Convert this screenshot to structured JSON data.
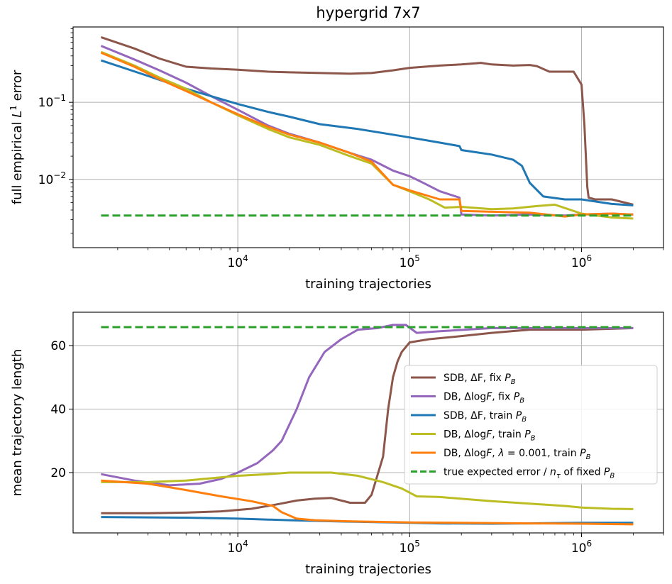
{
  "chart_data": [
    {
      "type": "line",
      "title": "hypergrid 7x7",
      "xlabel": "training trajectories",
      "ylabel": "full empirical L^1 error",
      "ylabel_parts": {
        "pre": "full empirical ",
        "var": "L",
        "sup": "1",
        "post": " error"
      },
      "x_scale": "log",
      "y_scale": "log",
      "xlim": [
        1100,
        3000000
      ],
      "ylim": [
        0.0013,
        0.95
      ],
      "grid": true,
      "xticks": [
        {
          "value": 10000,
          "base": "10",
          "exp": "4"
        },
        {
          "value": 100000,
          "base": "10",
          "exp": "5"
        },
        {
          "value": 1000000,
          "base": "10",
          "exp": "6"
        }
      ],
      "yticks": [
        {
          "value": 0.01,
          "base": "10",
          "exp": "−2"
        },
        {
          "value": 0.1,
          "base": "10",
          "exp": "−1"
        }
      ],
      "series": [
        {
          "key": "sdb_fix",
          "color": "#8c564b",
          "x": [
            1600,
            2500,
            3500,
            5000,
            7000,
            10000,
            15000,
            20000,
            30000,
            45000,
            60000,
            80000,
            100000,
            150000,
            200000,
            260000,
            300000,
            400000,
            500000,
            550000,
            650000,
            800000,
            900000,
            1000000,
            1040000,
            1080000,
            1100000,
            1200000,
            1500000,
            2000000
          ],
          "y": [
            0.7,
            0.5,
            0.37,
            0.29,
            0.275,
            0.265,
            0.25,
            0.245,
            0.24,
            0.235,
            0.24,
            0.26,
            0.28,
            0.3,
            0.31,
            0.325,
            0.31,
            0.3,
            0.305,
            0.295,
            0.25,
            0.25,
            0.25,
            0.17,
            0.05,
            0.008,
            0.0058,
            0.0055,
            0.0055,
            0.0047
          ]
        },
        {
          "key": "db_fix",
          "color": "#9467bd",
          "x": [
            1600,
            2500,
            3500,
            5000,
            7000,
            10000,
            15000,
            20000,
            30000,
            45000,
            60000,
            80000,
            100000,
            120000,
            150000,
            195000,
            200000,
            300000,
            500000,
            800000,
            1000000,
            1500000,
            2000000
          ],
          "y": [
            0.54,
            0.36,
            0.26,
            0.18,
            0.12,
            0.08,
            0.05,
            0.039,
            0.03,
            0.022,
            0.018,
            0.013,
            0.011,
            0.009,
            0.007,
            0.0058,
            0.0035,
            0.0034,
            0.0035,
            0.0034,
            0.0035,
            0.0036,
            0.0035
          ]
        },
        {
          "key": "sdb_train",
          "color": "#1f77b4",
          "x": [
            1600,
            3000,
            5000,
            7000,
            10000,
            15000,
            20000,
            30000,
            50000,
            80000,
            100000,
            150000,
            195000,
            200000,
            300000,
            400000,
            450000,
            500000,
            600000,
            800000,
            1000000,
            1500000,
            2000000
          ],
          "y": [
            0.35,
            0.22,
            0.15,
            0.12,
            0.095,
            0.075,
            0.065,
            0.052,
            0.045,
            0.038,
            0.035,
            0.03,
            0.027,
            0.024,
            0.021,
            0.018,
            0.015,
            0.009,
            0.006,
            0.0055,
            0.0055,
            0.0048,
            0.0046
          ]
        },
        {
          "key": "db_train",
          "color": "#bcbd22",
          "x": [
            1600,
            2500,
            3500,
            5000,
            7000,
            10000,
            15000,
            20000,
            30000,
            45000,
            60000,
            80000,
            100000,
            130000,
            160000,
            200000,
            300000,
            400000,
            550000,
            700000,
            1000000,
            1500000,
            2000000
          ],
          "y": [
            0.45,
            0.3,
            0.21,
            0.15,
            0.1,
            0.068,
            0.045,
            0.035,
            0.028,
            0.02,
            0.016,
            0.0085,
            0.007,
            0.0055,
            0.0043,
            0.0044,
            0.0041,
            0.0042,
            0.0045,
            0.0047,
            0.0036,
            0.0032,
            0.0031
          ]
        },
        {
          "key": "db_reg_train",
          "color": "#ff7f0e",
          "x": [
            1600,
            2500,
            3500,
            5000,
            7000,
            10000,
            15000,
            20000,
            30000,
            45000,
            60000,
            80000,
            100000,
            150000,
            195000,
            200000,
            300000,
            500000,
            800000,
            1000000,
            1500000,
            2000000
          ],
          "y": [
            0.44,
            0.29,
            0.2,
            0.14,
            0.1,
            0.07,
            0.048,
            0.038,
            0.03,
            0.022,
            0.017,
            0.0085,
            0.0072,
            0.0055,
            0.0055,
            0.0039,
            0.0038,
            0.0037,
            0.0033,
            0.0035,
            0.0036,
            0.0035
          ]
        },
        {
          "key": "true_error",
          "color": "#2ca02c",
          "dashed": true,
          "x": [
            1600,
            2000000
          ],
          "y": [
            0.0034,
            0.0034
          ]
        }
      ]
    },
    {
      "type": "line",
      "title": "",
      "xlabel": "training trajectories",
      "ylabel": "mean trajectory length",
      "x_scale": "log",
      "y_scale": "linear",
      "xlim": [
        1100,
        3000000
      ],
      "ylim": [
        1,
        70.5
      ],
      "grid": true,
      "legend_placement": "center-right",
      "xticks": [
        {
          "value": 10000,
          "base": "10",
          "exp": "4"
        },
        {
          "value": 100000,
          "base": "10",
          "exp": "5"
        },
        {
          "value": 1000000,
          "base": "10",
          "exp": "6"
        }
      ],
      "yticks": [
        {
          "value": 20,
          "label": "20"
        },
        {
          "value": 40,
          "label": "40"
        },
        {
          "value": 60,
          "label": "60"
        }
      ],
      "series": [
        {
          "key": "sdb_fix",
          "color": "#8c564b",
          "x": [
            1600,
            3000,
            5000,
            8000,
            12000,
            17000,
            22000,
            28000,
            35000,
            45000,
            55000,
            60000,
            70000,
            75000,
            80000,
            85000,
            90000,
            100000,
            130000,
            200000,
            300000,
            500000,
            1000000,
            2000000
          ],
          "y": [
            7.2,
            7.2,
            7.4,
            7.8,
            8.6,
            10,
            11.2,
            11.8,
            12,
            10.5,
            10.5,
            13,
            25,
            40,
            50,
            55,
            58,
            61,
            62,
            63,
            64,
            65,
            65,
            65.5
          ]
        },
        {
          "key": "db_fix",
          "color": "#9467bd",
          "x": [
            1600,
            2500,
            4000,
            6000,
            8000,
            10000,
            13000,
            16000,
            18000,
            22000,
            26000,
            32000,
            40000,
            50000,
            65000,
            80000,
            95000,
            110000,
            150000,
            300000,
            600000,
            1000000,
            2000000
          ],
          "y": [
            19.5,
            17.5,
            16,
            16.5,
            18,
            20,
            23,
            27,
            30,
            40,
            50,
            58,
            62,
            65,
            65.5,
            66.5,
            66.5,
            64,
            64.5,
            65.5,
            65.5,
            65.5,
            65.5
          ]
        },
        {
          "key": "sdb_train",
          "color": "#1f77b4",
          "x": [
            1600,
            5000,
            10000,
            20000,
            40000,
            80000,
            150000,
            300000,
            500000,
            1000000,
            2000000
          ],
          "y": [
            6,
            5.8,
            5.5,
            5,
            4.6,
            4.3,
            4,
            3.9,
            4,
            4.2,
            4.2
          ]
        },
        {
          "key": "db_train",
          "color": "#bcbd22",
          "x": [
            1600,
            3000,
            5000,
            10000,
            15000,
            20000,
            25000,
            35000,
            50000,
            70000,
            90000,
            110000,
            150000,
            300000,
            500000,
            800000,
            1000000,
            1500000,
            2000000
          ],
          "y": [
            17,
            17,
            17.5,
            19,
            19.5,
            20,
            20,
            20,
            19,
            17,
            15,
            12.5,
            12.3,
            11,
            10.2,
            9.5,
            9,
            8.6,
            8.5
          ]
        },
        {
          "key": "db_reg_train",
          "color": "#ff7f0e",
          "x": [
            1600,
            3000,
            5000,
            8000,
            12000,
            16000,
            18000,
            22000,
            28000,
            40000,
            60000,
            100000,
            200000,
            500000,
            1000000,
            2000000
          ],
          "y": [
            17.5,
            16.5,
            14.5,
            12.5,
            11,
            9.5,
            7.5,
            5.5,
            5,
            4.7,
            4.5,
            4.3,
            4.2,
            4,
            3.9,
            3.7
          ]
        },
        {
          "key": "true_len",
          "color": "#2ca02c",
          "dashed": true,
          "x": [
            1600,
            2000000
          ],
          "y": [
            65.8,
            65.8
          ]
        }
      ],
      "legend": [
        {
          "key": "sdb_fix",
          "color": "#8c564b",
          "parts": [
            {
              "t": "SDB, ΔF, fix "
            },
            {
              "t": "P",
              "i": true
            },
            {
              "t": "B",
              "sub": true
            }
          ]
        },
        {
          "key": "db_fix",
          "color": "#9467bd",
          "parts": [
            {
              "t": "DB, Δlog"
            },
            {
              "t": "F",
              "i": true
            },
            {
              "t": ", fix "
            },
            {
              "t": "P",
              "i": true
            },
            {
              "t": "B",
              "sub": true
            }
          ]
        },
        {
          "key": "sdb_train",
          "color": "#1f77b4",
          "parts": [
            {
              "t": "SDB, ΔF, train "
            },
            {
              "t": "P",
              "i": true
            },
            {
              "t": "B",
              "sub": true
            }
          ]
        },
        {
          "key": "db_train",
          "color": "#bcbd22",
          "parts": [
            {
              "t": "DB, Δlog"
            },
            {
              "t": "F",
              "i": true
            },
            {
              "t": ", train "
            },
            {
              "t": "P",
              "i": true
            },
            {
              "t": "B",
              "sub": true
            }
          ]
        },
        {
          "key": "db_reg_train",
          "color": "#ff7f0e",
          "parts": [
            {
              "t": "DB, Δlog"
            },
            {
              "t": "F",
              "i": true
            },
            {
              "t": ", "
            },
            {
              "t": "λ",
              "i": true
            },
            {
              "t": " = 0.001, train "
            },
            {
              "t": "P",
              "i": true
            },
            {
              "t": "B",
              "sub": true
            }
          ]
        },
        {
          "key": "true_len",
          "color": "#2ca02c",
          "dashed": true,
          "parts": [
            {
              "t": "true expected error / "
            },
            {
              "t": "n",
              "i": true
            },
            {
              "t": "τ",
              "sub": true
            },
            {
              "t": " of fixed "
            },
            {
              "t": "P",
              "i": true
            },
            {
              "t": "B",
              "sub": true
            }
          ]
        }
      ]
    }
  ]
}
